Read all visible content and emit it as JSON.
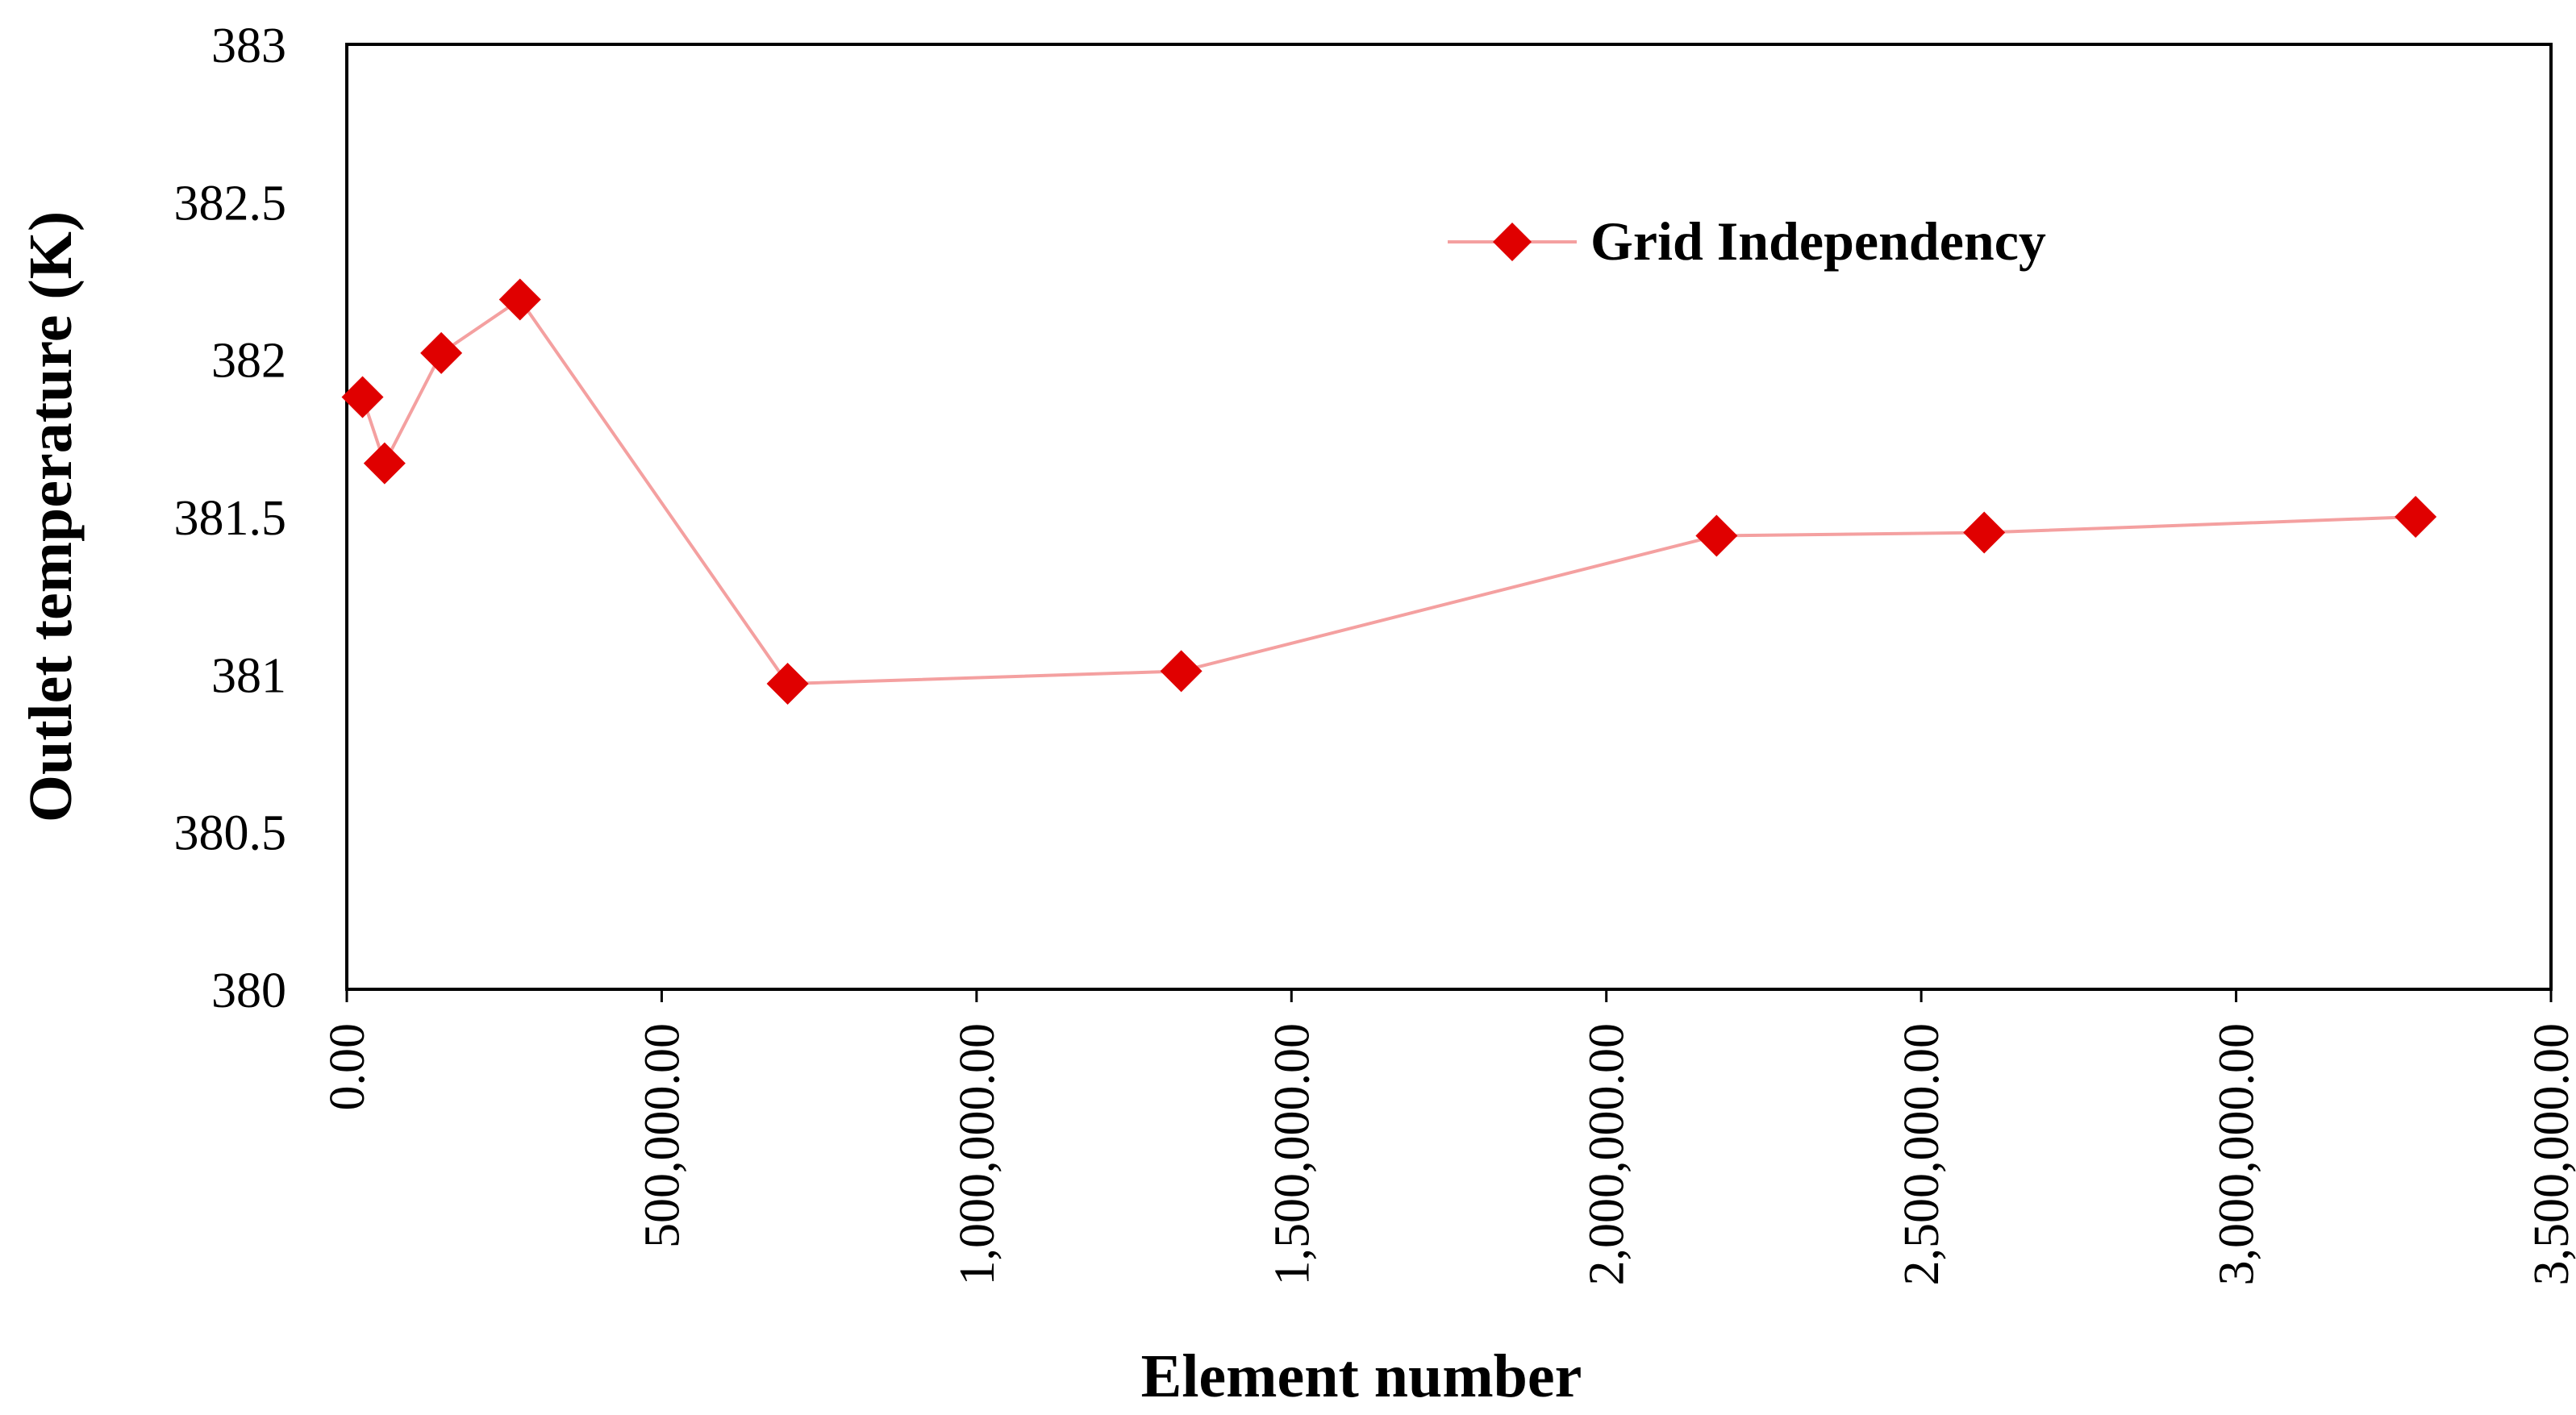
{
  "chart_data": {
    "type": "scatter",
    "title": "",
    "xlabel": "Element number",
    "ylabel": "Outlet temperature (K)",
    "xlim": [
      0,
      3500000
    ],
    "ylim": [
      380,
      383
    ],
    "x_ticks": [
      0,
      500000,
      1000000,
      1500000,
      2000000,
      2500000,
      3000000,
      3500000
    ],
    "x_tick_labels": [
      "0.00",
      "500,000.00",
      "1,000,000.00",
      "1,500,000.00",
      "2,000,000.00",
      "2,500,000.00",
      "3,000,000.00",
      "3,500,000.00"
    ],
    "y_ticks": [
      380,
      380.5,
      381,
      381.5,
      382,
      382.5,
      383
    ],
    "y_tick_labels": [
      "380",
      "380.5",
      "381",
      "381.5",
      "382",
      "382.5",
      "383"
    ],
    "grid": false,
    "legend_position": "top-right",
    "series": [
      {
        "name": "Grid Independency",
        "color": "#E00000",
        "line_color": "#F4A0A0",
        "marker": "diamond",
        "x": [
          25000,
          60000,
          150000,
          275000,
          700000,
          1325000,
          2175000,
          2600000,
          3285000
        ],
        "y": [
          381.88,
          381.67,
          382.02,
          382.19,
          380.97,
          381.01,
          381.44,
          381.45,
          381.5
        ]
      }
    ]
  }
}
